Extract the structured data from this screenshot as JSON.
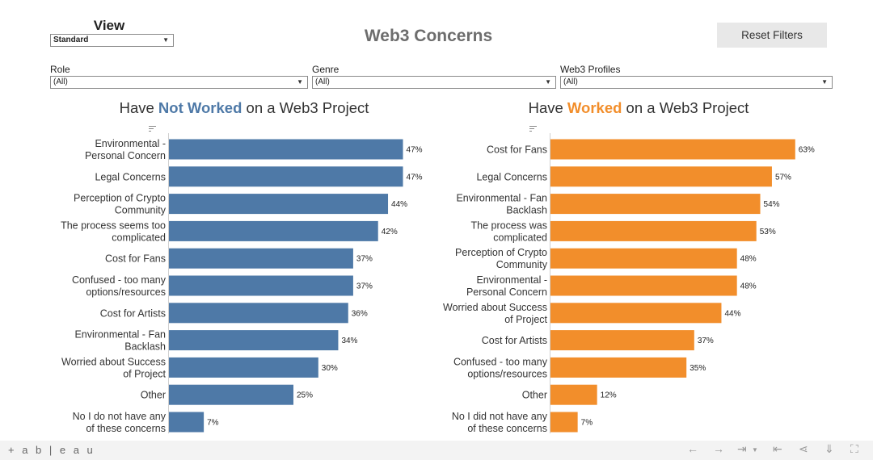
{
  "view": {
    "label": "View",
    "selected": "Standard"
  },
  "title": "Web3 Concerns",
  "reset_label": "Reset Filters",
  "filters": [
    {
      "label": "Role",
      "selected": "(All)"
    },
    {
      "label": "Genre",
      "selected": "(All)"
    },
    {
      "label": "Web3 Profiles",
      "selected": "(All)"
    }
  ],
  "left_chart_title": {
    "pre": "Have ",
    "highlight": "Not Worked",
    "post": " on a Web3 Project"
  },
  "right_chart_title": {
    "pre": "Have ",
    "highlight": "Worked",
    "post": " on a Web3 Project"
  },
  "colors": {
    "not_worked": "#4e79a7",
    "worked": "#f28e2b"
  },
  "footer": {
    "logo": "+ a b | e a u"
  },
  "icons": [
    "tableau-logo-icon",
    "undo-icon",
    "redo-icon",
    "revert-icon",
    "pause-icon",
    "share-icon",
    "download-icon",
    "fullscreen-icon"
  ],
  "chart_data": [
    {
      "type": "bar",
      "orientation": "horizontal",
      "categories": [
        "Environmental - Personal Concern",
        "Legal Concerns",
        "Perception of Crypto Community",
        "The process seems too complicated",
        "Cost for Fans",
        "Confused - too many options/resources",
        "Cost for Artists",
        "Environmental - Fan Backlash",
        "Worried about Success of Project",
        "Other",
        "No I do not have any of these concerns"
      ],
      "values": [
        47,
        47,
        44,
        42,
        37,
        37,
        36,
        34,
        30,
        25,
        7
      ],
      "value_labels": [
        "47%",
        "47%",
        "44%",
        "42%",
        "37%",
        "37%",
        "36%",
        "34%",
        "30%",
        "25%",
        "7%"
      ],
      "xlim": [
        0,
        50
      ],
      "color": "#4e79a7",
      "grid": false
    },
    {
      "type": "bar",
      "orientation": "horizontal",
      "categories": [
        "Cost for Fans",
        "Legal Concerns",
        "Environmental - Fan Backlash",
        "The process was complicated",
        "Perception of Crypto Community",
        "Environmental - Personal Concern",
        "Worried about Success of Project",
        "Cost for Artists",
        "Confused - too many options/resources",
        "Other",
        "No I did not have any of these concerns"
      ],
      "values": [
        63,
        57,
        54,
        53,
        48,
        48,
        44,
        37,
        35,
        12,
        7
      ],
      "value_labels": [
        "63%",
        "57%",
        "54%",
        "53%",
        "48%",
        "48%",
        "44%",
        "37%",
        "35%",
        "12%",
        "7%"
      ],
      "xlim": [
        0,
        67
      ],
      "color": "#f28e2b",
      "grid": false
    }
  ]
}
